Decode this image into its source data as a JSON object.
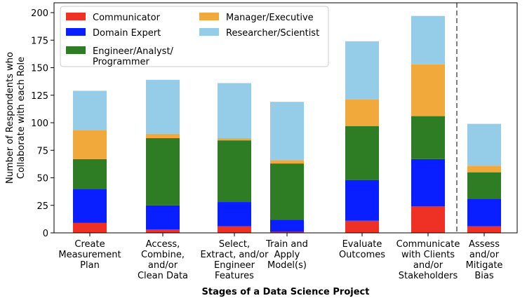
{
  "chart_data": {
    "type": "bar",
    "stacked": true,
    "xlabel": "Stages of a Data Science Project",
    "ylabel": [
      "Number of Respondents who",
      "Collaborate with each Role"
    ],
    "ylim": [
      0,
      200
    ],
    "yticks": [
      0,
      25,
      50,
      75,
      100,
      125,
      150,
      175,
      200
    ],
    "grid": false,
    "legend_position": "top-left",
    "categories": [
      [
        "Create",
        "Measurement",
        "Plan"
      ],
      [
        "Access,",
        "Combine,",
        "and/or",
        "Clean Data"
      ],
      [
        "Select,",
        "Extract, and/or",
        "Engineer",
        "Features"
      ],
      [
        "Train and",
        "Apply",
        "Model(s)"
      ],
      [
        "Evaluate",
        "Outcomes"
      ],
      [
        "Communicate",
        "with Clients",
        "and/or",
        "Stakeholders"
      ],
      [
        "Assess",
        "and/or",
        "Mitigate",
        "Bias"
      ]
    ],
    "separator_after_category_index": 5,
    "series": [
      {
        "name": "Communicator",
        "color": "#ee3124",
        "values": [
          9,
          3,
          6,
          1,
          11,
          24,
          6
        ]
      },
      {
        "name": "Domain Expert",
        "color": "#0a1fff",
        "values": [
          31,
          22,
          22,
          11,
          37,
          43,
          25
        ]
      },
      {
        "name": "Engineer/Analyst/\nProgrammer",
        "color": "#2e7d24",
        "values": [
          27,
          61,
          56,
          51,
          49,
          39,
          24
        ]
      },
      {
        "name": "Manager/Executive",
        "color": "#f2a93b",
        "values": [
          26,
          4,
          2,
          3,
          24,
          47,
          6
        ]
      },
      {
        "name": "Researcher/Scientist",
        "color": "#95cde8",
        "values": [
          36,
          49,
          50,
          53,
          53,
          44,
          38
        ]
      }
    ]
  }
}
